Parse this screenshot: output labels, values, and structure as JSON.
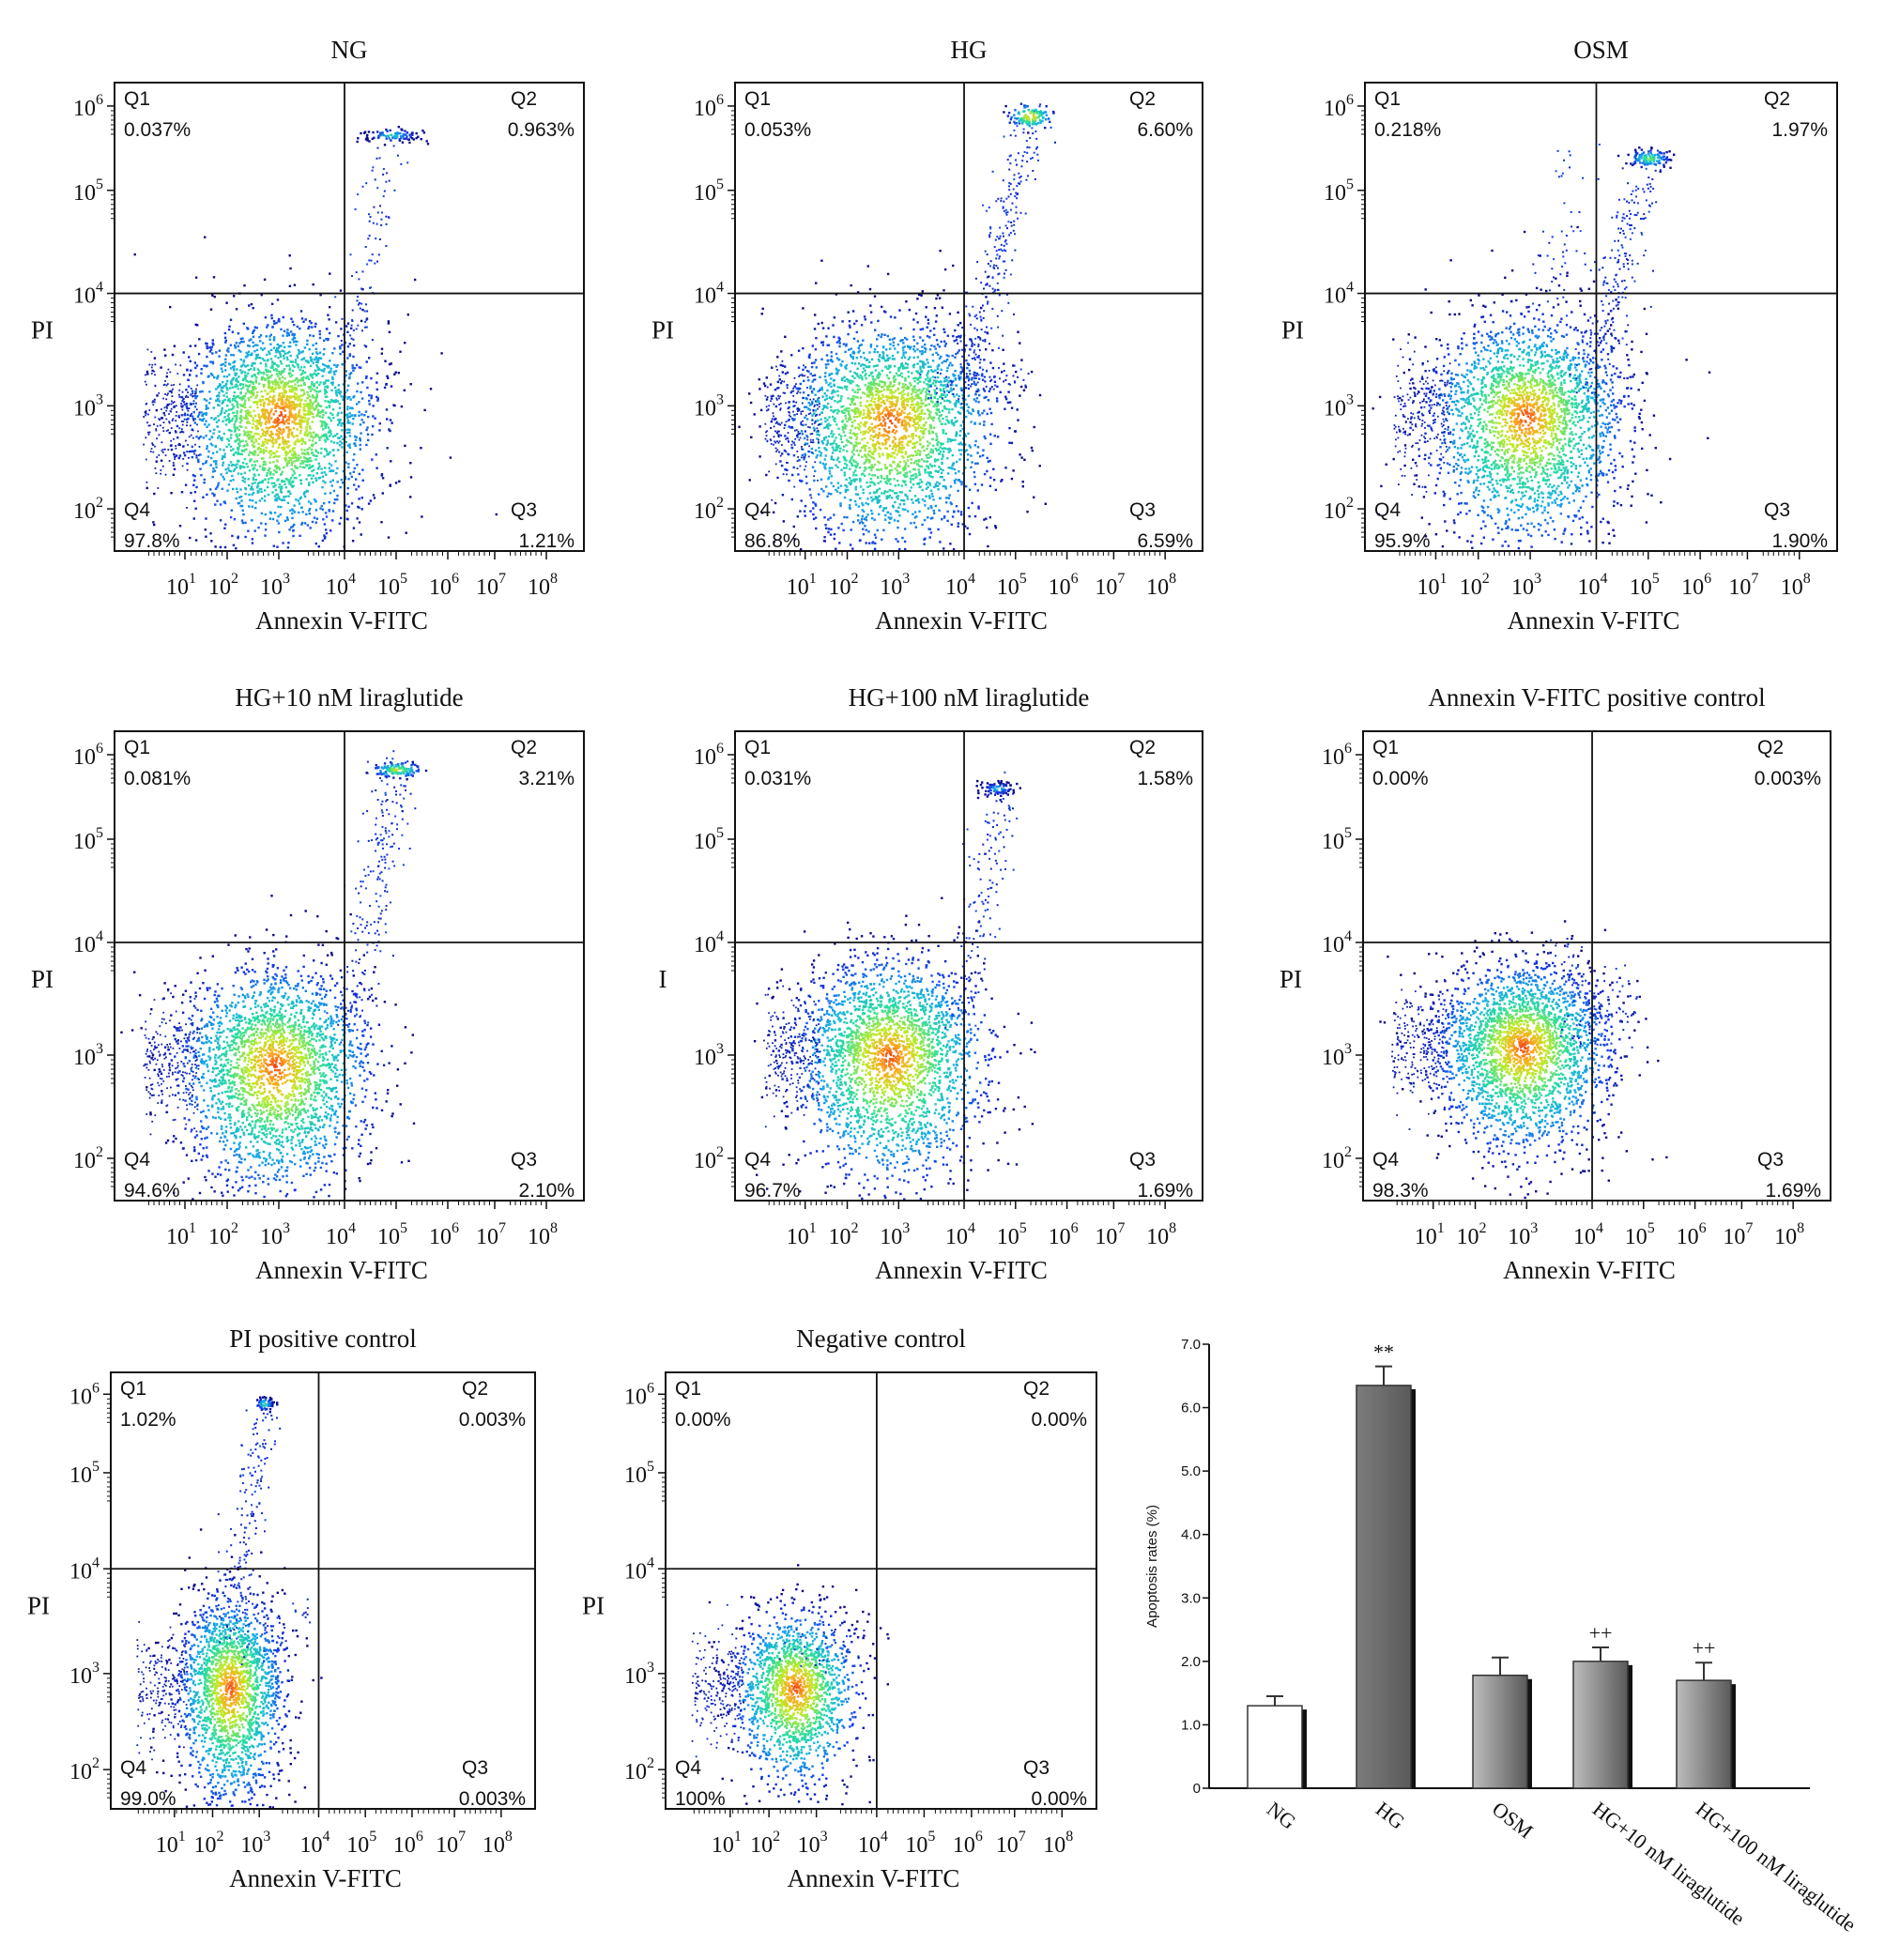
{
  "chart_data": [
    {
      "type": "scatter",
      "title": "NG",
      "xlabel": "Annexin V-FITC",
      "ylabel": "PI",
      "x_scale": "log",
      "y_scale": "log",
      "x_ticks": [
        "1",
        "2",
        "3",
        "4",
        "5",
        "6",
        "7",
        "8"
      ],
      "y_ticks": [
        "2",
        "3",
        "4",
        "5",
        "6"
      ],
      "quadrants": {
        "Q1": {
          "label": "Q1",
          "percent": "0.037%"
        },
        "Q2": {
          "label": "Q2",
          "percent": "0.963%"
        },
        "Q3": {
          "label": "Q3",
          "percent": "1.21%"
        },
        "Q4": {
          "label": "Q4",
          "percent": "97.8%"
        }
      }
    },
    {
      "type": "scatter",
      "title": "HG",
      "xlabel": "Annexin V-FITC",
      "ylabel": "PI",
      "x_scale": "log",
      "y_scale": "log",
      "x_ticks": [
        "1",
        "2",
        "3",
        "4",
        "5",
        "6",
        "7",
        "8"
      ],
      "y_ticks": [
        "2",
        "3",
        "4",
        "5",
        "6"
      ],
      "quadrants": {
        "Q1": {
          "label": "Q1",
          "percent": "0.053%"
        },
        "Q2": {
          "label": "Q2",
          "percent": "6.60%"
        },
        "Q3": {
          "label": "Q3",
          "percent": "6.59%"
        },
        "Q4": {
          "label": "Q4",
          "percent": "86.8%"
        }
      }
    },
    {
      "type": "scatter",
      "title": "OSM",
      "xlabel": "Annexin V-FITC",
      "ylabel": "PI",
      "x_scale": "log",
      "y_scale": "log",
      "x_ticks": [
        "1",
        "2",
        "3",
        "4",
        "5",
        "6",
        "7",
        "8"
      ],
      "y_ticks": [
        "2",
        "3",
        "4",
        "5",
        "6"
      ],
      "quadrants": {
        "Q1": {
          "label": "Q1",
          "percent": "0.218%"
        },
        "Q2": {
          "label": "Q2",
          "percent": "1.97%"
        },
        "Q3": {
          "label": "Q3",
          "percent": "1.90%"
        },
        "Q4": {
          "label": "Q4",
          "percent": "95.9%"
        }
      }
    },
    {
      "type": "scatter",
      "title": "HG+10 nM liraglutide",
      "xlabel": "Annexin V-FITC",
      "ylabel": "PI",
      "x_scale": "log",
      "y_scale": "log",
      "x_ticks": [
        "1",
        "2",
        "3",
        "4",
        "5",
        "6",
        "7",
        "8"
      ],
      "y_ticks": [
        "2",
        "3",
        "4",
        "5",
        "6"
      ],
      "quadrants": {
        "Q1": {
          "label": "Q1",
          "percent": "0.081%"
        },
        "Q2": {
          "label": "Q2",
          "percent": "3.21%"
        },
        "Q3": {
          "label": "Q3",
          "percent": "2.10%"
        },
        "Q4": {
          "label": "Q4",
          "percent": "94.6%"
        }
      }
    },
    {
      "type": "scatter",
      "title": "HG+100 nM liraglutide",
      "xlabel": "Annexin V-FITC",
      "ylabel": "I",
      "x_scale": "log",
      "y_scale": "log",
      "x_ticks": [
        "1",
        "2",
        "3",
        "4",
        "5",
        "6",
        "7",
        "8"
      ],
      "y_ticks": [
        "2",
        "3",
        "4",
        "5",
        "6"
      ],
      "quadrants": {
        "Q1": {
          "label": "Q1",
          "percent": "0.031%"
        },
        "Q2": {
          "label": "Q2",
          "percent": "1.58%"
        },
        "Q3": {
          "label": "Q3",
          "percent": "1.69%"
        },
        "Q4": {
          "label": "Q4",
          "percent": "96.7%"
        }
      }
    },
    {
      "type": "scatter",
      "title": "Annexin V-FITC  positive control",
      "xlabel": "Annexin V-FITC",
      "ylabel": "PI",
      "x_scale": "log",
      "y_scale": "log",
      "x_ticks": [
        "1",
        "2",
        "3",
        "4",
        "5",
        "6",
        "7",
        "8"
      ],
      "y_ticks": [
        "2",
        "3",
        "4",
        "5",
        "6"
      ],
      "quadrants": {
        "Q1": {
          "label": "Q1",
          "percent": "0.00%"
        },
        "Q2": {
          "label": "Q2",
          "percent": "0.003%"
        },
        "Q3": {
          "label": "Q3",
          "percent": "1.69%"
        },
        "Q4": {
          "label": "Q4",
          "percent": "98.3%"
        }
      }
    },
    {
      "type": "scatter",
      "title": "PI positive control",
      "xlabel": "Annexin V-FITC",
      "ylabel": "PI",
      "x_scale": "log",
      "y_scale": "log",
      "x_ticks": [
        "1",
        "2",
        "3",
        "4",
        "5",
        "6",
        "7",
        "8"
      ],
      "y_ticks": [
        "2",
        "3",
        "4",
        "5",
        "6"
      ],
      "quadrants": {
        "Q1": {
          "label": "Q1",
          "percent": "1.02%"
        },
        "Q2": {
          "label": "Q2",
          "percent": "0.003%"
        },
        "Q3": {
          "label": "Q3",
          "percent": "0.003%"
        },
        "Q4": {
          "label": "Q4",
          "percent": "99.0%"
        }
      }
    },
    {
      "type": "scatter",
      "title": "Negative control",
      "xlabel": "Annexin V-FITC",
      "ylabel": "PI",
      "x_scale": "log",
      "y_scale": "log",
      "x_ticks": [
        "1",
        "2",
        "3",
        "4",
        "5",
        "6",
        "7",
        "8"
      ],
      "y_ticks": [
        "2",
        "3",
        "4",
        "5",
        "6"
      ],
      "quadrants": {
        "Q1": {
          "label": "Q1",
          "percent": "0.00%"
        },
        "Q2": {
          "label": "Q2",
          "percent": "0.00%"
        },
        "Q3": {
          "label": "Q3",
          "percent": "0.00%"
        },
        "Q4": {
          "label": "Q4",
          "percent": "100%"
        }
      }
    },
    {
      "type": "bar",
      "title": "",
      "xlabel": "",
      "ylabel": "Apoptosis rates (%)",
      "categories": [
        "NG",
        "HG",
        "OSM",
        "HG+10 nM liraglutide",
        "HG+100 nM liraglutide"
      ],
      "values": [
        1.3,
        6.35,
        1.78,
        2.0,
        1.7
      ],
      "errors": [
        0.15,
        0.3,
        0.28,
        0.22,
        0.28
      ],
      "annotations": [
        "",
        "**",
        "",
        "++",
        "++"
      ],
      "ylim": [
        0,
        7.0
      ],
      "y_ticks": [
        "0",
        "1.0",
        "2.0",
        "3.0",
        "4.0",
        "5.0",
        "6.0",
        "7.0"
      ],
      "bar_colors": [
        "#ffffff",
        "#7c7c7c",
        "#bdbdbd",
        "#bdbdbd",
        "#bdbdbd"
      ]
    }
  ]
}
